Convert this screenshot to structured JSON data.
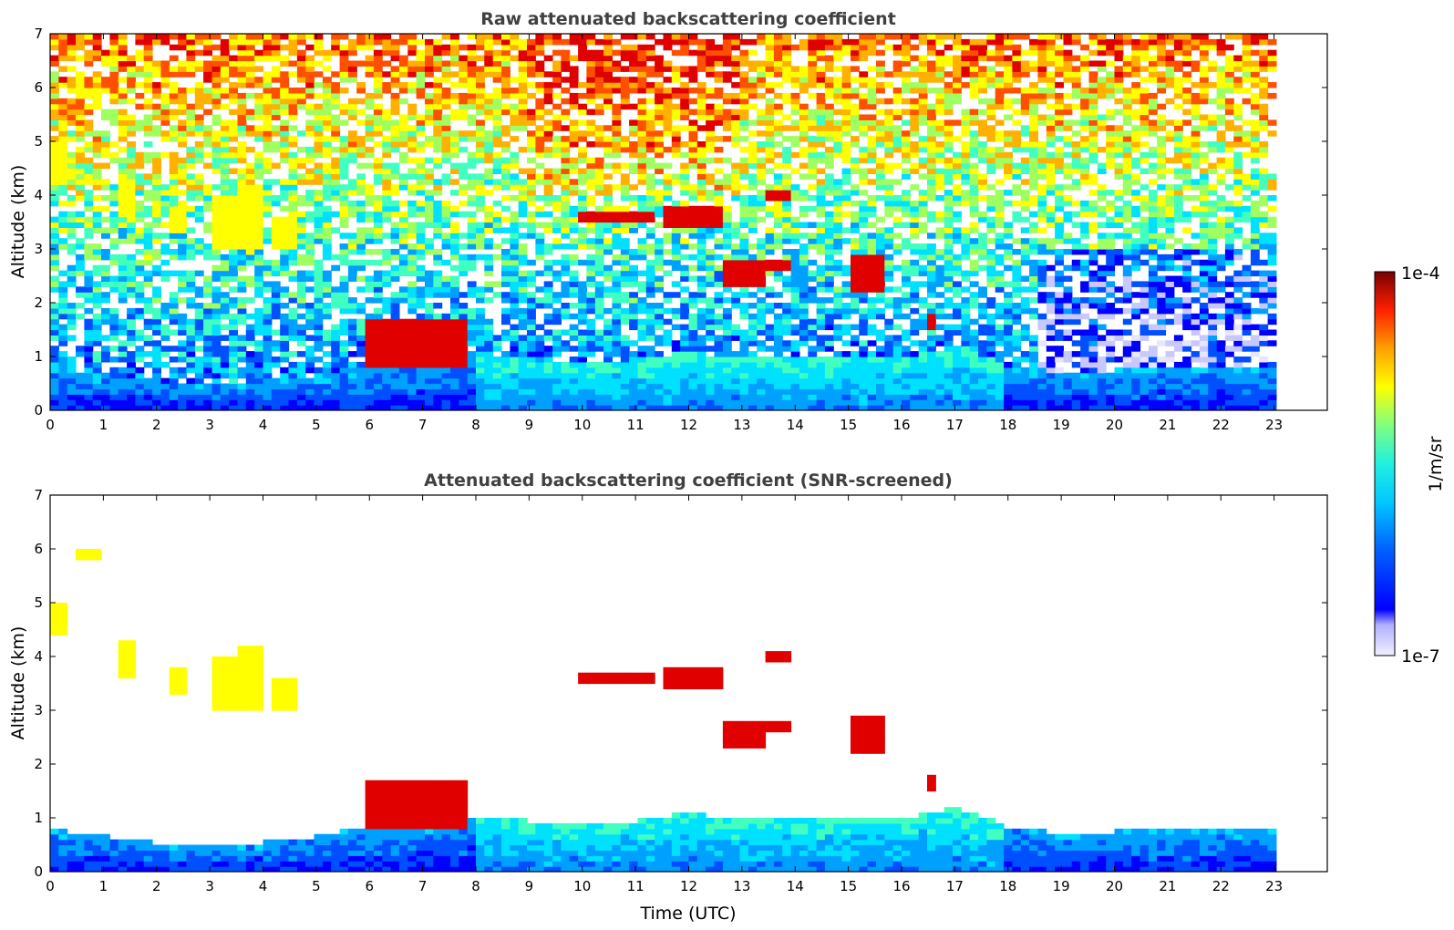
{
  "chart_data": [
    {
      "type": "heatmap",
      "title": "Raw attenuated backscattering coefficient",
      "xlabel": "",
      "ylabel": "Altitude (km)",
      "xlim": [
        0,
        24
      ],
      "ylim": [
        0,
        7
      ],
      "x_ticks": [
        "0",
        "1",
        "2",
        "3",
        "4",
        "5",
        "6",
        "7",
        "8",
        "9",
        "10",
        "11",
        "12",
        "13",
        "14",
        "15",
        "16",
        "17",
        "18",
        "19",
        "20",
        "21",
        "22",
        "23"
      ],
      "y_ticks": [
        "0",
        "1",
        "2",
        "3",
        "4",
        "5",
        "6",
        "7"
      ],
      "data_end_hour": 23,
      "boundary_layer_top_km": {
        "hours": [
          0,
          2,
          3,
          4,
          5,
          6,
          7,
          8,
          9,
          10,
          11,
          12,
          13,
          14,
          15,
          16,
          17,
          18,
          19,
          20,
          21,
          22,
          23
        ],
        "values": [
          0.8,
          0.55,
          0.5,
          0.55,
          0.65,
          0.85,
          0.95,
          1.05,
          0.95,
          0.9,
          0.95,
          1.1,
          0.95,
          1.0,
          1.05,
          0.95,
          1.2,
          0.85,
          0.7,
          0.75,
          0.8,
          0.8,
          0.8
        ]
      },
      "features": [
        {
          "kind": "cirrus",
          "x": [
            0.0,
            0.35
          ],
          "y": [
            4.4,
            5.0
          ]
        },
        {
          "kind": "cirrus",
          "x": [
            0.5,
            0.9
          ],
          "y": [
            5.8,
            6.0
          ]
        },
        {
          "kind": "cirrus",
          "x": [
            1.3,
            1.6
          ],
          "y": [
            3.6,
            4.3
          ]
        },
        {
          "kind": "cirrus",
          "x": [
            2.2,
            2.6
          ],
          "y": [
            3.3,
            3.8
          ]
        },
        {
          "kind": "cirrus",
          "x": [
            3.0,
            3.5
          ],
          "y": [
            3.0,
            4.0
          ]
        },
        {
          "kind": "cirrus",
          "x": [
            3.6,
            4.0
          ],
          "y": [
            3.0,
            4.2
          ]
        },
        {
          "kind": "cirrus",
          "x": [
            4.2,
            4.6
          ],
          "y": [
            3.0,
            3.6
          ]
        },
        {
          "kind": "cloud",
          "x": [
            9.9,
            11.3
          ],
          "y": [
            3.5,
            3.7
          ]
        },
        {
          "kind": "cloud",
          "x": [
            11.6,
            12.7
          ],
          "y": [
            3.45,
            3.8
          ]
        },
        {
          "kind": "cloud",
          "x": [
            12.7,
            13.5
          ],
          "y": [
            2.3,
            2.8
          ]
        },
        {
          "kind": "cloud",
          "x": [
            13.5,
            14.0
          ],
          "y": [
            2.65,
            2.8
          ]
        },
        {
          "kind": "cloud",
          "x": [
            13.5,
            14.0
          ],
          "y": [
            3.9,
            4.1
          ]
        },
        {
          "kind": "cloud",
          "x": [
            15.1,
            15.7
          ],
          "y": [
            2.2,
            2.9
          ]
        },
        {
          "kind": "cloud",
          "x": [
            6.0,
            7.8
          ],
          "y": [
            0.8,
            1.7
          ]
        },
        {
          "kind": "cloud",
          "x": [
            16.5,
            16.7
          ],
          "y": [
            1.55,
            1.85
          ]
        }
      ]
    },
    {
      "type": "heatmap",
      "title": "Attenuated backscattering coefficient (SNR-screened)",
      "xlabel": "Time (UTC)",
      "ylabel": "Altitude (km)",
      "xlim": [
        0,
        24
      ],
      "ylim": [
        0,
        7
      ],
      "x_ticks": [
        "0",
        "1",
        "2",
        "3",
        "4",
        "5",
        "6",
        "7",
        "8",
        "9",
        "10",
        "11",
        "12",
        "13",
        "14",
        "15",
        "16",
        "17",
        "18",
        "19",
        "20",
        "21",
        "22",
        "23"
      ],
      "y_ticks": [
        "0",
        "1",
        "2",
        "3",
        "4",
        "5",
        "6",
        "7"
      ],
      "screened": true
    }
  ],
  "colorbar": {
    "max_label": "1e-4",
    "min_label": "1e-7",
    "unit_label": "1/m/sr",
    "colors": [
      "#e6e6ff",
      "#c8c8ff",
      "#0000ff",
      "#0050ff",
      "#00a0ff",
      "#00e0ff",
      "#40ffc0",
      "#a0ff60",
      "#ffff00",
      "#ffb000",
      "#ff5000",
      "#e00000",
      "#800000"
    ]
  }
}
